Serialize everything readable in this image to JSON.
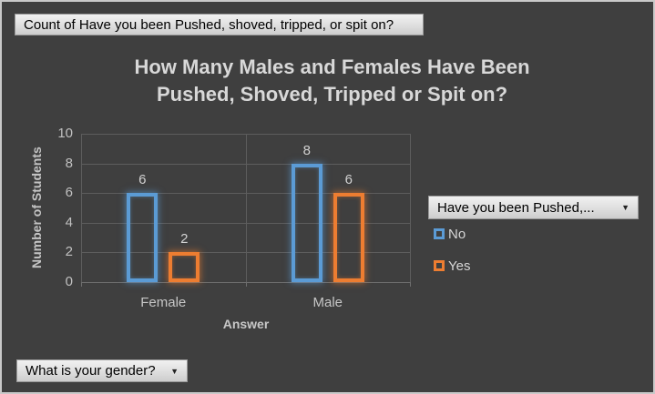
{
  "window": {
    "background": "#3F3F3F",
    "border_color": "#C9C9C9"
  },
  "pivot_buttons": {
    "value_field": "Count of Have you been Pushed, shoved, tripped, or spit on?",
    "legend_field": "Have you been Pushed,...",
    "axis_field": "What is your gender?",
    "dropdown_arrow": "▼"
  },
  "chart_data": {
    "type": "bar",
    "title": "How Many Males and Females Have Been Pushed, Shoved, Tripped or Spit on?",
    "title_lines": [
      "How Many Males and Females Have Been",
      "Pushed, Shoved, Tripped or Spit on?"
    ],
    "categories": [
      "Female",
      "Male"
    ],
    "series": [
      {
        "name": "No",
        "values": [
          6,
          8
        ],
        "color": "#5B9BD5"
      },
      {
        "name": "Yes",
        "values": [
          2,
          6
        ],
        "color": "#ED7D31"
      }
    ],
    "xlabel": "Answer",
    "ylabel": "Number of Students",
    "ylim": [
      0,
      10
    ],
    "yticks": [
      0,
      2,
      4,
      6,
      8,
      10
    ],
    "grid": true,
    "legend_position": "right",
    "data_labels": true,
    "bar_style": "outlined-glow",
    "gridline_color": "#5D5D5D",
    "axis_color": "#6E6E6E",
    "text_color": "#C6C6C6"
  }
}
